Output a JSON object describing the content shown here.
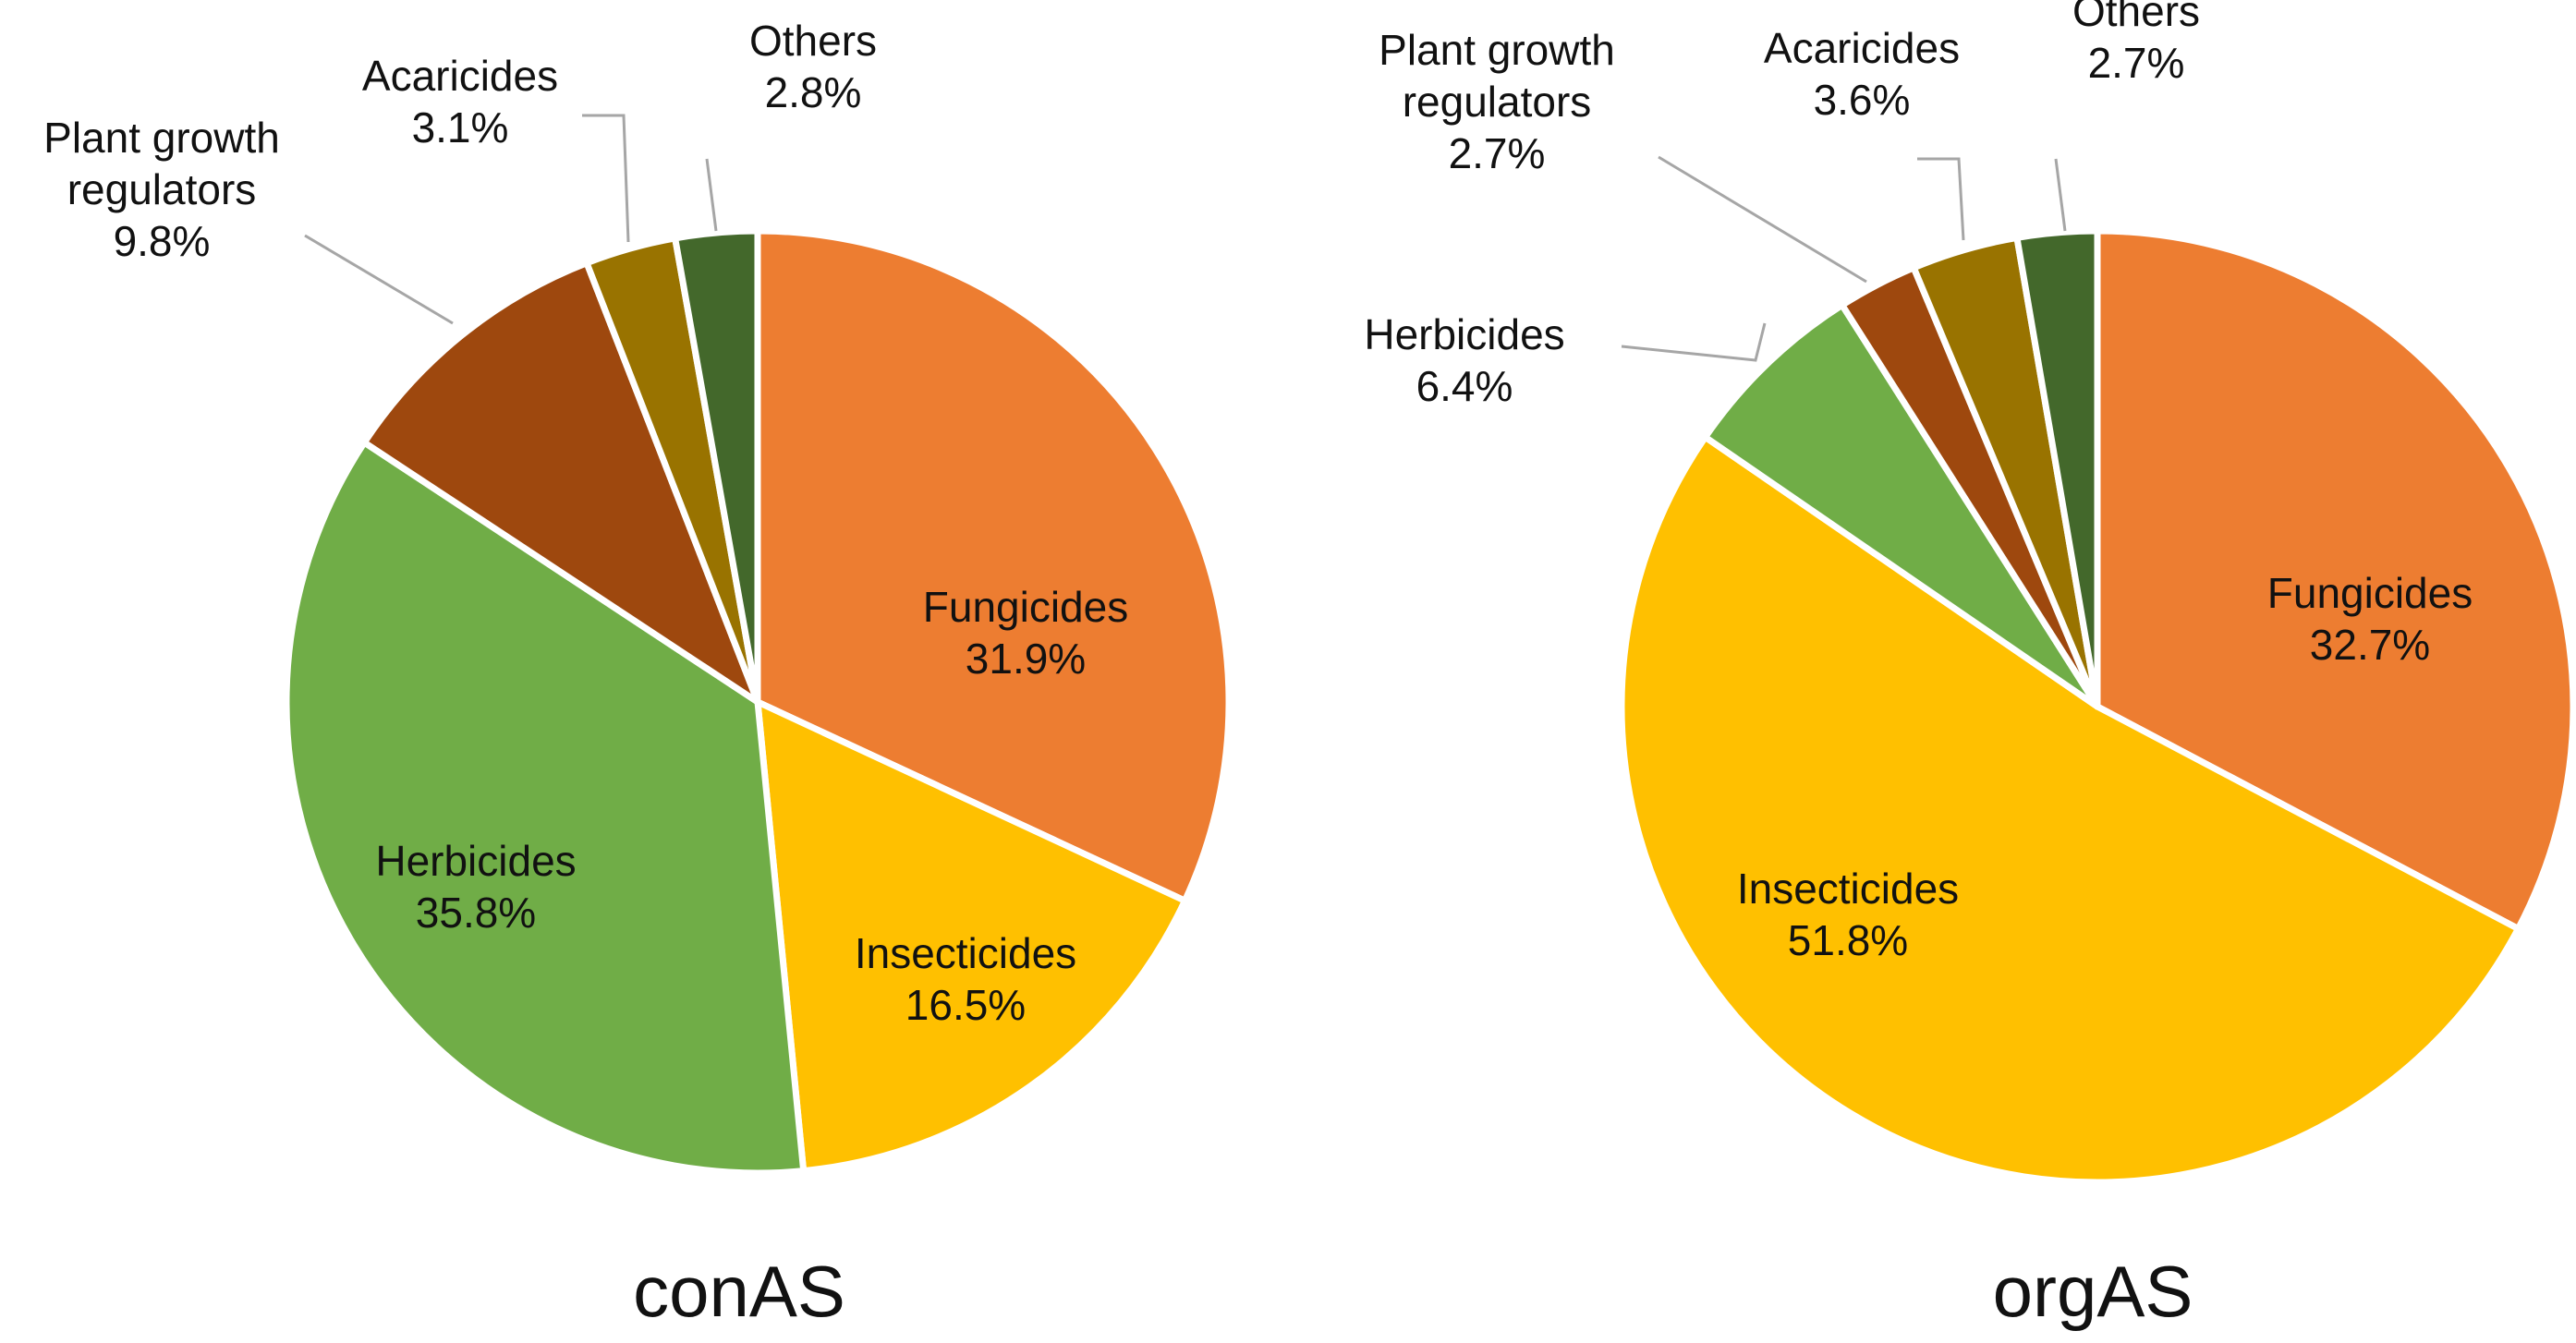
{
  "chart_data": [
    {
      "type": "pie",
      "title": "conAS",
      "slices": [
        {
          "name": "Fungicides",
          "value": 31.9,
          "value_label": "31.9%",
          "color": "#ED7D31"
        },
        {
          "name": "Insecticides",
          "value": 16.5,
          "value_label": "16.5%",
          "color": "#FFC000"
        },
        {
          "name": "Herbicides",
          "value": 35.8,
          "value_label": "35.8%",
          "color": "#70AD47"
        },
        {
          "name": "Plant growth regulators",
          "name_lines": [
            "Plant growth",
            "regulators"
          ],
          "value": 9.8,
          "value_label": "9.8%",
          "color": "#9E480E"
        },
        {
          "name": "Acaricides",
          "value": 3.1,
          "value_label": "3.1%",
          "color": "#997300"
        },
        {
          "name": "Others",
          "value": 2.8,
          "value_label": "2.8%",
          "color": "#43682B"
        }
      ]
    },
    {
      "type": "pie",
      "title": "orgAS",
      "slices": [
        {
          "name": "Fungicides",
          "value": 32.7,
          "value_label": "32.7%",
          "color": "#ED7D31"
        },
        {
          "name": "Insecticides",
          "value": 51.8,
          "value_label": "51.8%",
          "color": "#FFC000"
        },
        {
          "name": "Herbicides",
          "value": 6.4,
          "value_label": "6.4%",
          "color": "#70AD47"
        },
        {
          "name": "Plant growth regulators",
          "name_lines": [
            "Plant growth",
            "regulators"
          ],
          "value": 2.7,
          "value_label": "2.7%",
          "color": "#9E480E"
        },
        {
          "name": "Acaricides",
          "value": 3.6,
          "value_label": "3.6%",
          "color": "#997300"
        },
        {
          "name": "Others",
          "value": 2.7,
          "value_label": "2.7%",
          "color": "#43682B"
        }
      ]
    }
  ]
}
